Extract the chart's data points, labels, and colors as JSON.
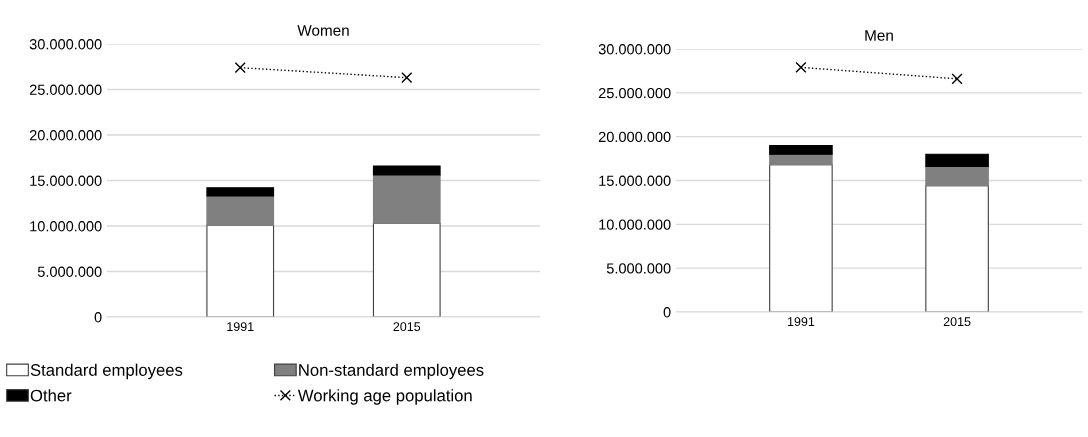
{
  "chart_data": [
    {
      "type": "bar",
      "title": "Women",
      "categories": [
        "1991",
        "2015"
      ],
      "stacked": true,
      "grid": "y",
      "legend": "bottom",
      "ylim": [
        0,
        30000000
      ],
      "yticks": [
        0,
        {
          "value": 5000000,
          "label": "5.000.000"
        },
        {
          "value": 10000000,
          "label": "10.000.000"
        },
        {
          "value": 15000000,
          "label": "15.000.000"
        },
        {
          "value": 20000000,
          "label": "20.000.000"
        },
        {
          "value": 25000000,
          "label": "25.000.000"
        },
        {
          "value": 30000000,
          "label": "30.000.000"
        }
      ],
      "series": [
        {
          "name": "Standard employees",
          "color": "#ffffff",
          "values": [
            10100000,
            10300000
          ]
        },
        {
          "name": "Non-standard employees",
          "color": "#808080",
          "values": [
            3200000,
            5300000
          ]
        },
        {
          "name": "Other",
          "color": "#000000",
          "values": [
            900000,
            1000000
          ]
        },
        {
          "name": "Working age population",
          "type": "line",
          "color": "#000000",
          "marker": "cross",
          "line_style": "dotted",
          "values": [
            27400000,
            26300000
          ]
        }
      ]
    },
    {
      "type": "bar",
      "title": "Men",
      "categories": [
        "1991",
        "2015"
      ],
      "stacked": true,
      "grid": "y",
      "ylim": [
        0,
        30000000
      ],
      "yticks": [
        0,
        {
          "value": 5000000,
          "label": "5.000.000"
        },
        {
          "value": 10000000,
          "label": "10.000.000"
        },
        {
          "value": 15000000,
          "label": "15.000.000"
        },
        {
          "value": 20000000,
          "label": "20.000.000"
        },
        {
          "value": 25000000,
          "label": "25.000.000"
        },
        {
          "value": 30000000,
          "label": "30.000.000"
        }
      ],
      "series": [
        {
          "color": "#ffffff",
          "values": [
            16800000,
            14400000
          ]
        },
        {
          "color": "#808080",
          "values": [
            1200000,
            2200000
          ]
        },
        {
          "color": "#000000",
          "values": [
            1000000,
            1400000
          ]
        },
        {
          "type": "line",
          "color": "#000000",
          "marker": "cross",
          "line_style": "dotted",
          "values": [
            27900000,
            26600000
          ]
        }
      ]
    }
  ]
}
